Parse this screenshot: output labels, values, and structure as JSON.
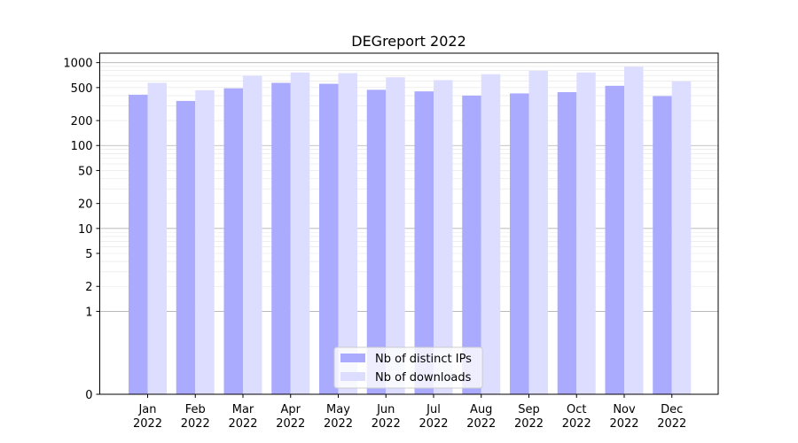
{
  "chart_data": {
    "type": "bar",
    "title": "DEGreport 2022",
    "xlabel": "",
    "ylabel": "",
    "yscale": "symlog",
    "ylim": [
      0,
      1300
    ],
    "y_ticks": [
      0,
      1,
      2,
      5,
      10,
      20,
      50,
      100,
      200,
      500,
      1000
    ],
    "y_tick_labels": [
      "0",
      "1",
      "2",
      "5",
      "10",
      "20",
      "50",
      "100",
      "200",
      "500",
      "1000"
    ],
    "categories": [
      "Jan\n2022",
      "Feb\n2022",
      "Mar\n2022",
      "Apr\n2022",
      "May\n2022",
      "Jun\n2022",
      "Jul\n2022",
      "Aug\n2022",
      "Sep\n2022",
      "Oct\n2022",
      "Nov\n2022",
      "Dec\n2022"
    ],
    "series": [
      {
        "name": "Nb of distinct IPs",
        "color": "#aaaaff",
        "values": [
          410,
          345,
          490,
          570,
          555,
          470,
          450,
          400,
          425,
          440,
          525,
          395
        ]
      },
      {
        "name": "Nb of downloads",
        "color": "#ddddff",
        "values": [
          570,
          465,
          690,
          760,
          745,
          665,
          615,
          725,
          800,
          760,
          890,
          595
        ]
      }
    ],
    "grid": true,
    "legend_position": "lower-center"
  }
}
